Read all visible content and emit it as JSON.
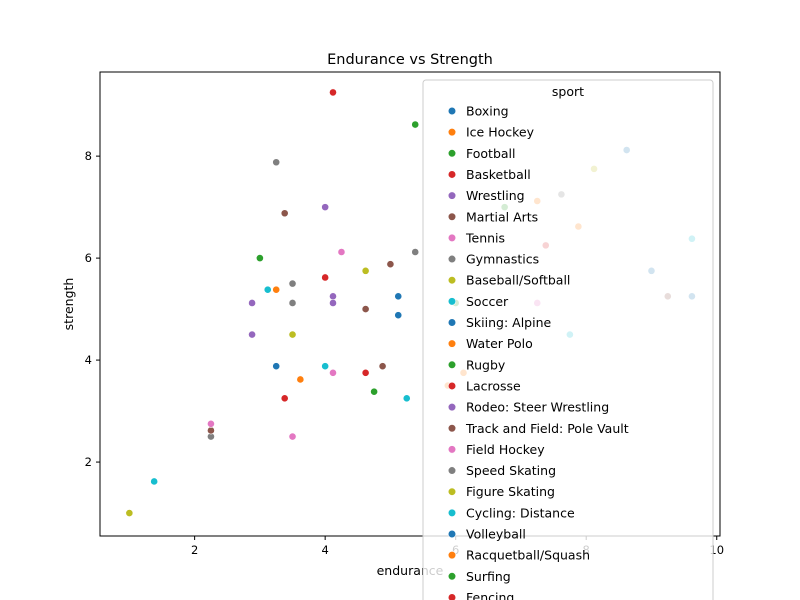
{
  "chart_data": {
    "type": "scatter",
    "title": "Endurance vs Strength",
    "xlabel": "endurance",
    "ylabel": "strength",
    "xlim": [
      0.55,
      10.05
    ],
    "ylim": [
      0.55,
      9.65
    ],
    "xticks": [
      2,
      4,
      6,
      8,
      10
    ],
    "yticks": [
      2,
      4,
      6,
      8
    ],
    "xtick_labels": [
      "2",
      "4",
      "6",
      "8",
      "10"
    ],
    "ytick_labels": [
      "2",
      "4",
      "6",
      "8"
    ],
    "grid": false,
    "legend": {
      "title": "sport",
      "position": "upper right, overlapping plot"
    },
    "series": [
      {
        "name": "Boxing",
        "color": "#1f77b4",
        "points": [
          [
            5.12,
            4.88
          ],
          [
            5.12,
            5.25
          ],
          [
            3.25,
            3.88
          ],
          [
            8.62,
            8.12
          ]
        ]
      },
      {
        "name": "Ice Hockey",
        "color": "#ff7f0e",
        "points": [
          [
            3.25,
            5.38
          ],
          [
            7.88,
            6.62
          ],
          [
            3.62,
            3.62
          ],
          [
            7.25,
            7.12
          ]
        ]
      },
      {
        "name": "Football",
        "color": "#2ca02c",
        "points": [
          [
            5.38,
            8.62
          ],
          [
            3.0,
            6.0
          ],
          [
            6.0,
            5.12
          ],
          [
            6.75,
            7.0
          ]
        ]
      },
      {
        "name": "Basketball",
        "color": "#d62728",
        "points": [
          [
            4.12,
            9.25
          ],
          [
            4.0,
            5.62
          ],
          [
            4.62,
            3.75
          ],
          [
            7.38,
            6.25
          ]
        ]
      },
      {
        "name": "Wrestling",
        "color": "#9467bd",
        "points": [
          [
            4.0,
            7.0
          ],
          [
            2.88,
            5.12
          ],
          [
            4.12,
            5.25
          ],
          [
            2.88,
            4.5
          ],
          [
            4.12,
            5.12
          ]
        ]
      },
      {
        "name": "Martial Arts",
        "color": "#8c564b",
        "points": [
          [
            3.38,
            6.88
          ],
          [
            5.0,
            5.88
          ],
          [
            4.62,
            5.0
          ],
          [
            4.88,
            3.88
          ],
          [
            9.25,
            5.25
          ]
        ]
      },
      {
        "name": "Tennis",
        "color": "#e377c2",
        "points": [
          [
            4.25,
            6.12
          ],
          [
            4.12,
            3.75
          ],
          [
            3.5,
            2.5
          ],
          [
            7.25,
            5.12
          ]
        ]
      },
      {
        "name": "Gymnastics",
        "color": "#7f7f7f",
        "points": [
          [
            3.25,
            7.88
          ],
          [
            5.38,
            6.12
          ],
          [
            3.5,
            5.5
          ],
          [
            3.5,
            5.12
          ],
          [
            2.25,
            2.5
          ],
          [
            7.62,
            7.25
          ]
        ]
      },
      {
        "name": "Baseball/Softball",
        "color": "#bcbd22",
        "points": [
          [
            4.62,
            5.75
          ],
          [
            3.5,
            4.5
          ],
          [
            8.12,
            7.75
          ]
        ]
      },
      {
        "name": "Soccer",
        "color": "#17becf",
        "points": [
          [
            3.12,
            5.38
          ],
          [
            4.0,
            3.88
          ],
          [
            5.25,
            3.25
          ],
          [
            9.62,
            6.38
          ],
          [
            7.75,
            4.5
          ]
        ]
      },
      {
        "name": "Skiing: Alpine",
        "color": "#1f77b4",
        "points": [
          [
            9.0,
            5.75
          ],
          [
            9.62,
            5.25
          ]
        ]
      },
      {
        "name": "Water Polo",
        "color": "#ff7f0e",
        "points": [
          [
            6.12,
            3.75
          ],
          [
            5.88,
            3.5
          ]
        ]
      },
      {
        "name": "Rugby",
        "color": "#2ca02c",
        "points": [
          [
            4.75,
            3.38
          ]
        ]
      },
      {
        "name": "Lacrosse",
        "color": "#d62728",
        "points": [
          [
            3.38,
            3.25
          ]
        ]
      },
      {
        "name": "Rodeo: Steer Wrestling",
        "color": "#9467bd",
        "points": []
      },
      {
        "name": "Track and Field: Pole Vault",
        "color": "#8c564b",
        "points": [
          [
            2.25,
            2.62
          ]
        ]
      },
      {
        "name": "Field Hockey",
        "color": "#e377c2",
        "points": [
          [
            2.25,
            2.75
          ]
        ]
      },
      {
        "name": "Speed Skating",
        "color": "#7f7f7f",
        "points": []
      },
      {
        "name": "Figure Skating",
        "color": "#bcbd22",
        "points": [
          [
            1.0,
            1.0
          ]
        ]
      },
      {
        "name": "Cycling: Distance",
        "color": "#17becf",
        "points": [
          [
            1.38,
            1.62
          ]
        ]
      },
      {
        "name": "Volleyball",
        "color": "#1f77b4",
        "points": []
      },
      {
        "name": "Racquetball/Squash",
        "color": "#ff7f0e",
        "points": []
      },
      {
        "name": "Surfing",
        "color": "#2ca02c",
        "points": []
      },
      {
        "name": "Fencing",
        "color": "#d62728",
        "points": []
      }
    ]
  }
}
